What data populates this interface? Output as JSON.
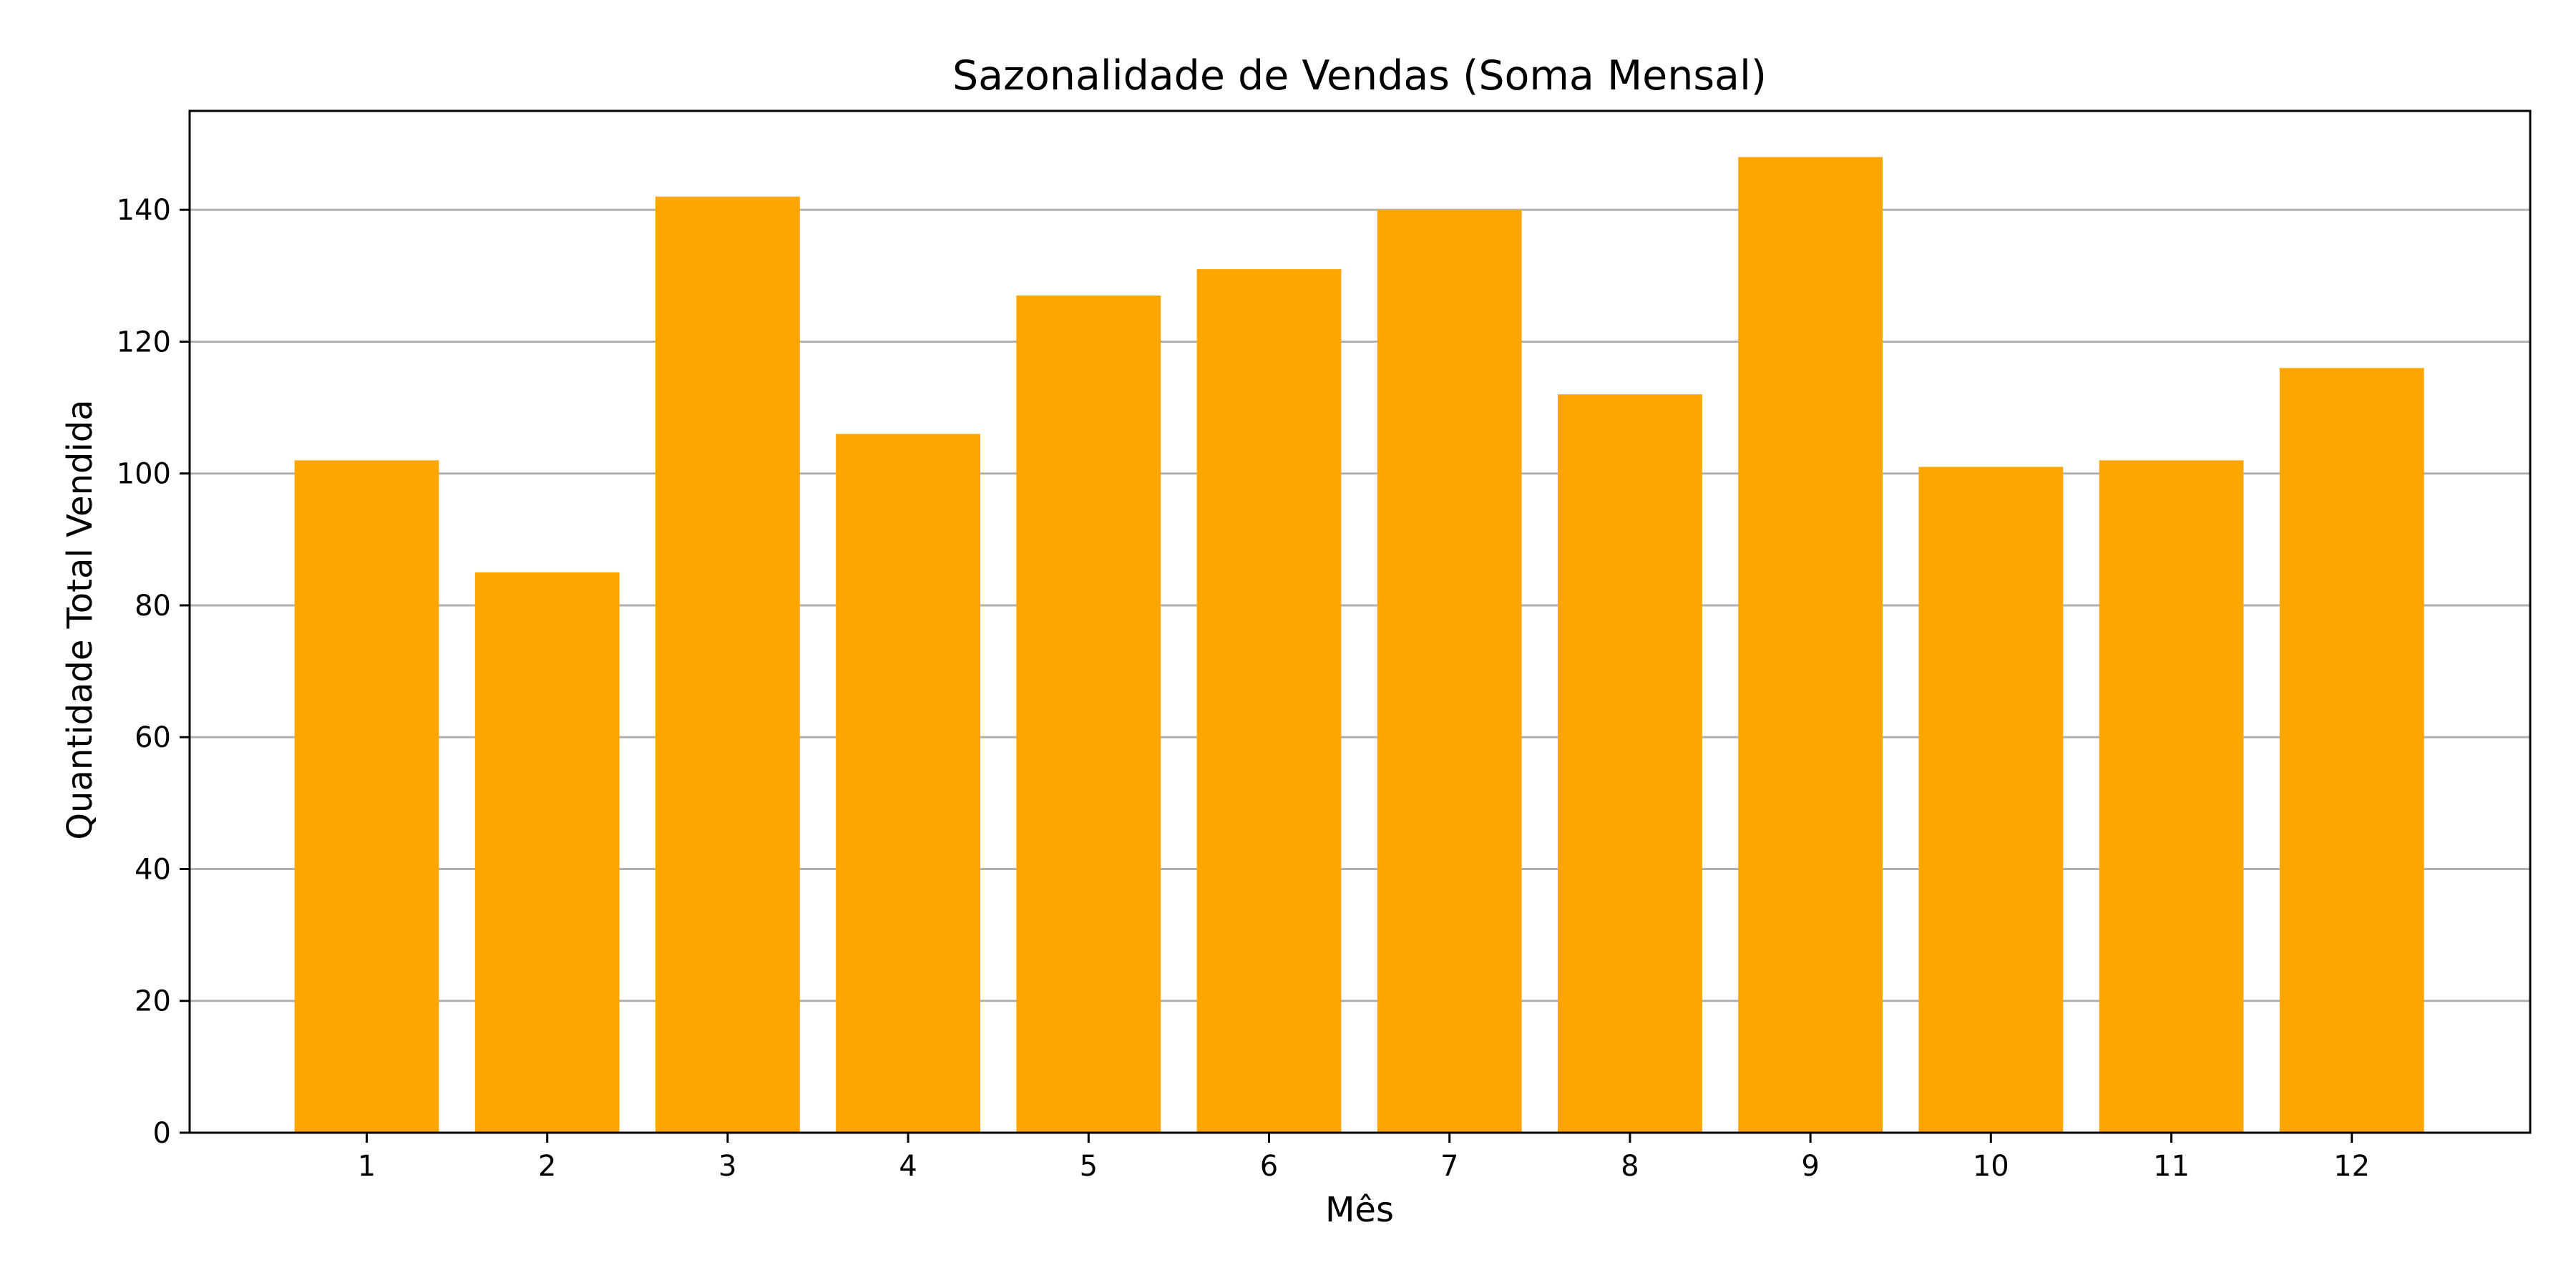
{
  "chart_data": {
    "type": "bar",
    "title": "Sazonalidade de Vendas (Soma Mensal)",
    "xlabel": "Mês",
    "ylabel": "Quantidade Total Vendida",
    "categories": [
      "1",
      "2",
      "3",
      "4",
      "5",
      "6",
      "7",
      "8",
      "9",
      "10",
      "11",
      "12"
    ],
    "values": [
      102,
      85,
      142,
      106,
      127,
      131,
      140,
      112,
      148,
      101,
      102,
      116
    ],
    "ylim": [
      0,
      155
    ],
    "yticks": [
      "0",
      "20",
      "40",
      "60",
      "80",
      "100",
      "120",
      "140"
    ],
    "grid": "horizontal",
    "bar_color": "#FFA500",
    "grid_color": "#b0b0b0"
  }
}
